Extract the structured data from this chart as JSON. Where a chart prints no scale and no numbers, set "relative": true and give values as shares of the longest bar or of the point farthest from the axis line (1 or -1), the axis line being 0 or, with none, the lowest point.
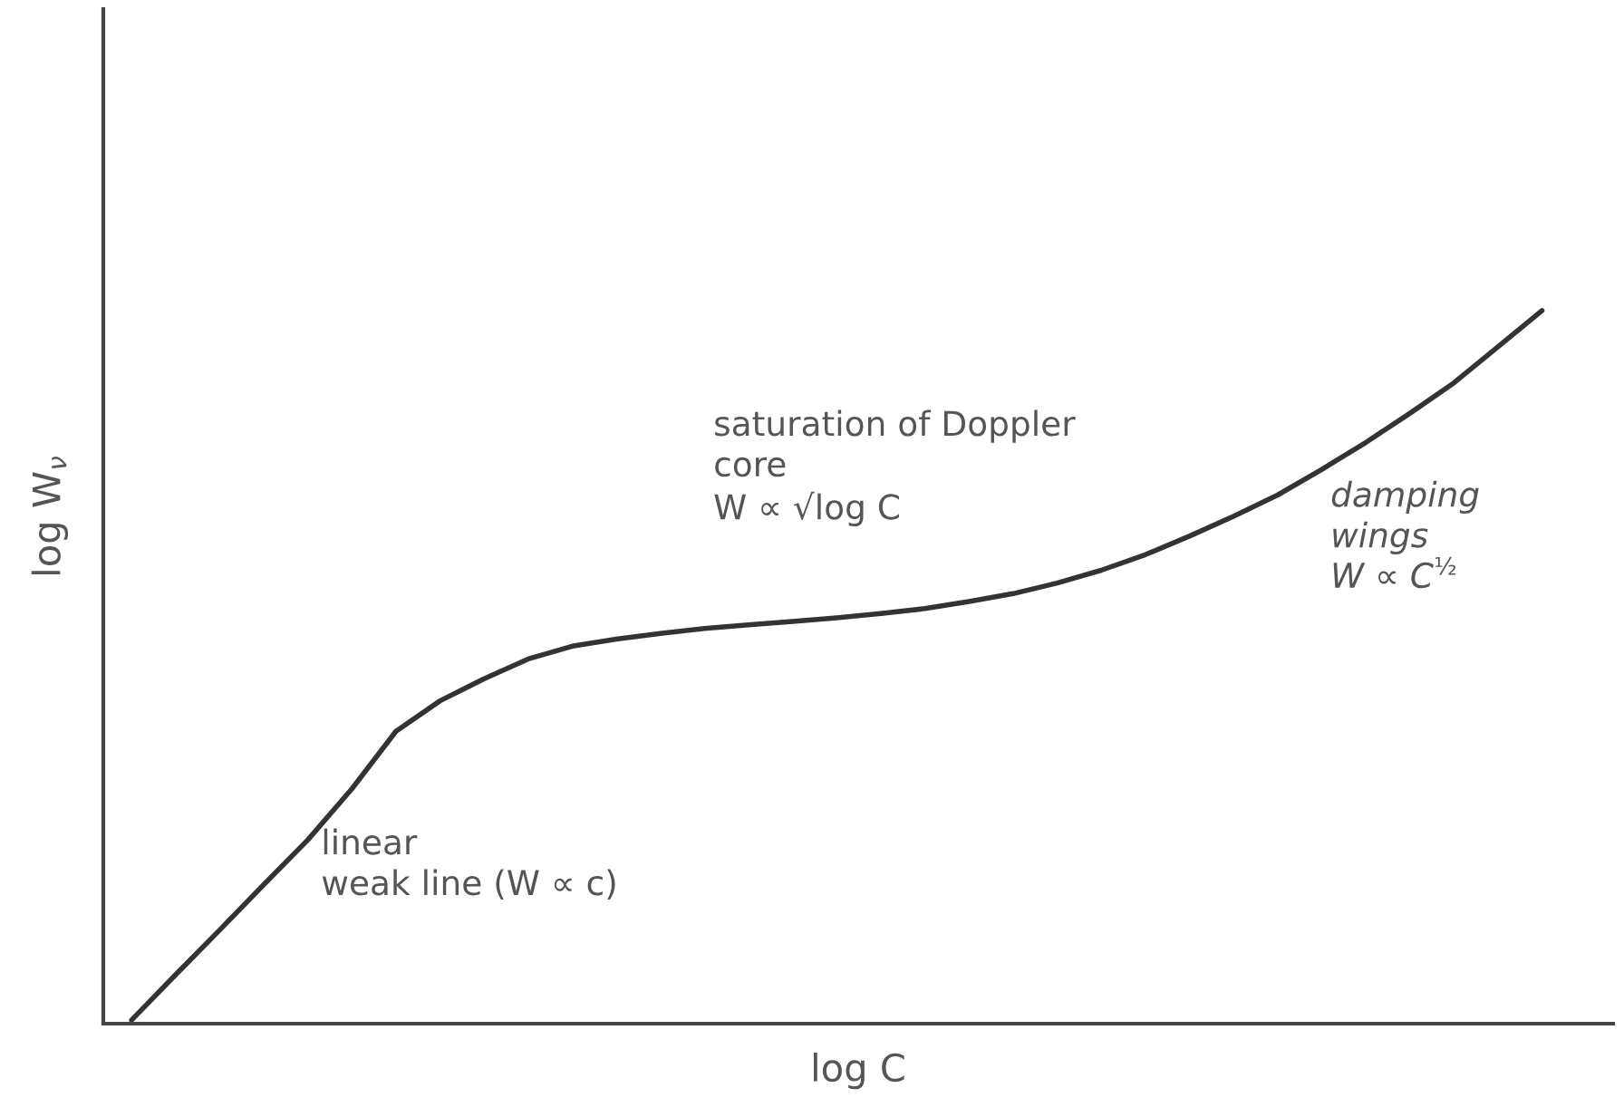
{
  "chart_data": {
    "type": "line",
    "relative": true,
    "xlabel": "log C",
    "ylabel": "log W$_{ν}$",
    "categories": [
      null,
      null,
      null,
      null,
      null,
      null,
      null,
      null,
      null,
      null,
      null,
      null,
      null,
      null,
      null,
      null,
      null,
      null,
      null,
      null,
      null,
      null,
      null,
      null,
      null,
      null,
      null,
      null,
      null,
      null,
      null,
      null,
      null
    ],
    "series": [
      {
        "color": "#333333",
        "values": [
          0,
          0.064,
          0.127,
          0.191,
          0.254,
          0.326,
          0.407,
          0.45,
          0.481,
          0.509,
          0.527,
          0.537,
          0.545,
          0.552,
          0.557,
          0.562,
          0.567,
          0.573,
          0.58,
          0.59,
          0.601,
          0.616,
          0.634,
          0.656,
          0.682,
          0.71,
          0.74,
          0.776,
          0.814,
          0.855,
          0.898,
          0.949,
          1
        ]
      }
    ],
    "annotations": [
      "saturation of Doppler\ncore\nW ∝ √log C",
      "damping\nwings\nW ∝ C$^{½}$",
      "linear\nweak line (W ∝ c)"
    ],
    "grid": false,
    "legend": false,
    "marker": "none",
    "line_style": "solid"
  }
}
